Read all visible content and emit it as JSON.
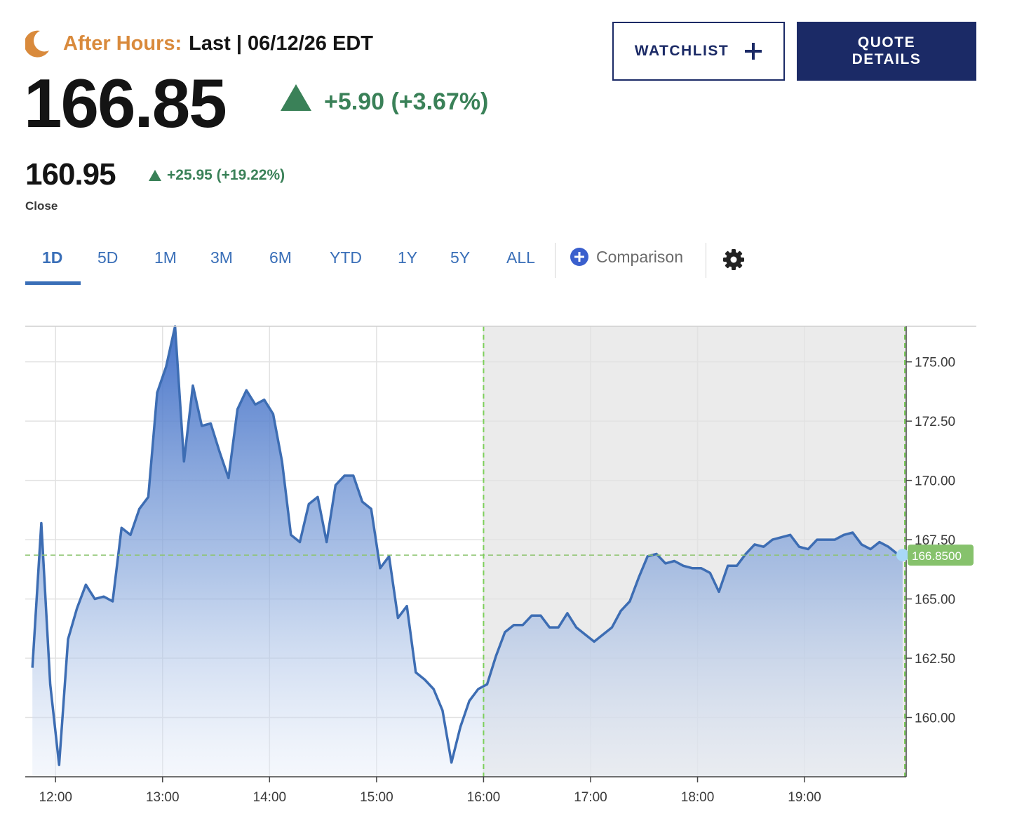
{
  "header": {
    "session_label": "After Hours:",
    "last_text": "Last | 06/12/26 EDT",
    "price": "166.85",
    "change": "+5.90 (+3.67%)",
    "close_price": "160.95",
    "close_change": "+25.95 (+19.22%)",
    "close_label": "Close"
  },
  "buttons": {
    "watchlist": "WATCHLIST",
    "quote_details": "QUOTE\nDETAILS"
  },
  "tabs": [
    {
      "label": "1D",
      "active": true
    },
    {
      "label": "5D",
      "active": false
    },
    {
      "label": "1M",
      "active": false
    },
    {
      "label": "3M",
      "active": false
    },
    {
      "label": "6M",
      "active": false
    },
    {
      "label": "YTD",
      "active": false
    },
    {
      "label": "1Y",
      "active": false
    },
    {
      "label": "5Y",
      "active": false
    },
    {
      "label": "ALL",
      "active": false
    }
  ],
  "comparison_label": "Comparison",
  "colors": {
    "accent": "#3a6fb8",
    "navy": "#1b2a66",
    "up_green": "#3a8158",
    "after_hours_orange": "#d98a3c",
    "line": "#3d6db3",
    "tag_green": "#86c26c"
  },
  "icons": {
    "session": "moon-icon",
    "watchlist": "plus-icon",
    "comparison": "plus-circle-icon",
    "settings": "gear-icon"
  },
  "chart_data": {
    "type": "area",
    "xlabel": "",
    "ylabel": "",
    "y_ticks": [
      "160.00",
      "162.50",
      "165.00",
      "167.50",
      "170.00",
      "172.50",
      "175.00"
    ],
    "x_ticks": [
      "12:00",
      "13:00",
      "14:00",
      "15:00",
      "16:00",
      "17:00",
      "18:00",
      "19:00"
    ],
    "ylim": [
      157.5,
      176.5
    ],
    "xlim": [
      "11:43",
      "19:57"
    ],
    "grid": true,
    "after_hours_start": "16:00",
    "last_value_label": "166.8500",
    "last_value": 166.85,
    "series": [
      {
        "x": [
          "11:47",
          "11:52",
          "11:57",
          "12:02",
          "12:07",
          "12:12",
          "12:17",
          "12:22",
          "12:27",
          "12:32",
          "12:37",
          "12:42",
          "12:47",
          "12:52",
          "12:57",
          "13:02",
          "13:07",
          "13:12",
          "13:17",
          "13:22",
          "13:27",
          "13:32",
          "13:37",
          "13:42",
          "13:47",
          "13:52",
          "13:57",
          "14:02",
          "14:07",
          "14:12",
          "14:17",
          "14:22",
          "14:27",
          "14:32",
          "14:37",
          "14:42",
          "14:47",
          "14:52",
          "14:57",
          "15:02",
          "15:07",
          "15:12",
          "15:17",
          "15:22",
          "15:27",
          "15:32",
          "15:37",
          "15:42",
          "15:47",
          "15:52",
          "15:57",
          "16:02",
          "16:07",
          "16:12",
          "16:17",
          "16:22",
          "16:27",
          "16:32",
          "16:37",
          "16:42",
          "16:47",
          "16:52",
          "16:57",
          "17:02",
          "17:07",
          "17:12",
          "17:17",
          "17:22",
          "17:27",
          "17:32",
          "17:37",
          "17:42",
          "17:47",
          "17:52",
          "17:57",
          "18:02",
          "18:07",
          "18:12",
          "18:17",
          "18:22",
          "18:27",
          "18:32",
          "18:37",
          "18:42",
          "18:47",
          "18:52",
          "18:57",
          "19:02",
          "19:07",
          "19:12",
          "19:17",
          "19:22",
          "19:27",
          "19:32",
          "19:37",
          "19:42",
          "19:47",
          "19:52",
          "19:55"
        ],
        "values": [
          162.1,
          168.2,
          161.4,
          158.0,
          163.3,
          164.6,
          165.6,
          165.0,
          165.1,
          164.9,
          168.0,
          167.7,
          168.8,
          169.3,
          173.7,
          174.8,
          176.5,
          170.8,
          174.0,
          172.3,
          172.4,
          171.2,
          170.1,
          173.0,
          173.8,
          173.2,
          173.4,
          172.8,
          170.8,
          167.7,
          167.4,
          169.0,
          169.3,
          167.4,
          169.8,
          170.2,
          170.2,
          169.1,
          168.8,
          166.3,
          166.8,
          164.2,
          164.7,
          161.9,
          161.6,
          161.2,
          160.3,
          158.1,
          159.6,
          160.7,
          161.2,
          161.4,
          162.6,
          163.6,
          163.9,
          163.9,
          164.3,
          164.3,
          163.8,
          163.8,
          164.4,
          163.8,
          163.5,
          163.2,
          163.5,
          163.8,
          164.5,
          164.9,
          165.9,
          166.8,
          166.9,
          166.5,
          166.6,
          166.4,
          166.3,
          166.3,
          166.1,
          165.3,
          166.4,
          166.4,
          166.9,
          167.3,
          167.2,
          167.5,
          167.6,
          167.7,
          167.2,
          167.1,
          167.5,
          167.5,
          167.5,
          167.7,
          167.8,
          167.3,
          167.1,
          167.4,
          167.2,
          166.9,
          166.85
        ]
      }
    ]
  }
}
